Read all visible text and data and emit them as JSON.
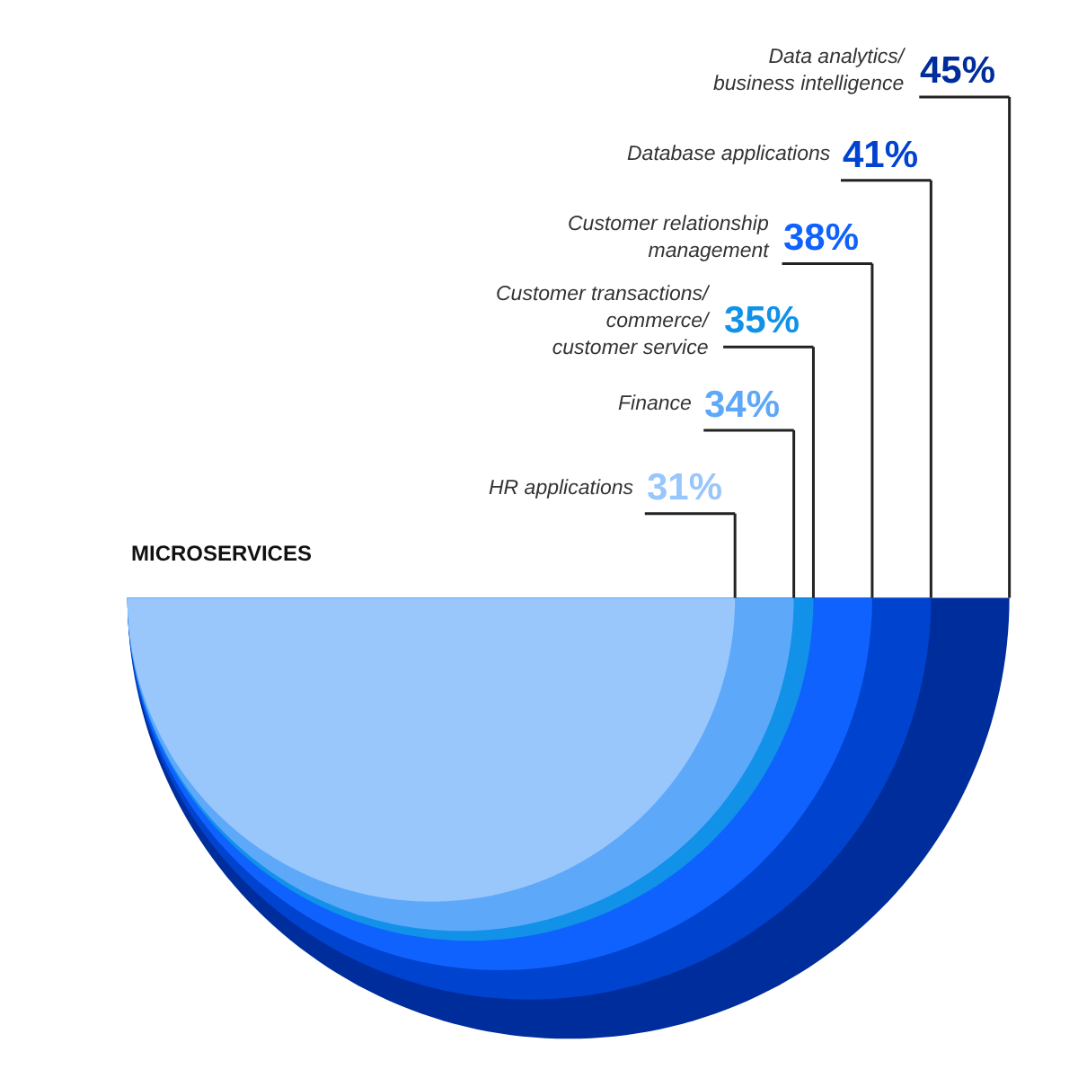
{
  "chart_data": {
    "type": "other",
    "title": "MICROSERVICES",
    "categories": [
      "Data analytics/\nbusiness intelligence",
      "Database applications",
      "Customer relationship\nmanagement",
      "Customer transactions/\ncommerce/\ncustomer service",
      "Finance",
      "HR applications"
    ],
    "values": [
      45,
      41,
      38,
      35,
      34,
      31
    ],
    "value_labels": [
      "45%",
      "41%",
      "38%",
      "35%",
      "34%",
      "31%"
    ],
    "colors": [
      "#002d9c",
      "#0043ce",
      "#0f62fe",
      "#1192e8",
      "#5ea8fa",
      "#99c7fb"
    ]
  }
}
